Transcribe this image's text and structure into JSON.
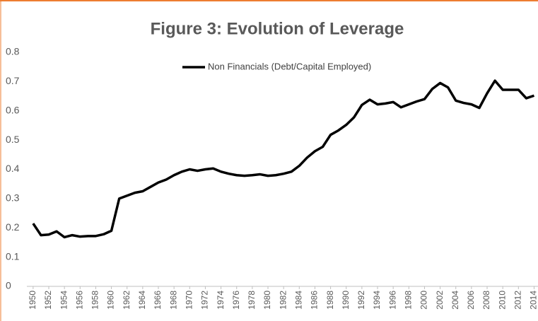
{
  "chart_data": {
    "type": "line",
    "title": "Figure 3: Evolution of Leverage",
    "x": [
      1950,
      1951,
      1952,
      1953,
      1954,
      1955,
      1956,
      1957,
      1958,
      1959,
      1960,
      1961,
      1962,
      1963,
      1964,
      1965,
      1966,
      1967,
      1968,
      1969,
      1970,
      1971,
      1972,
      1973,
      1974,
      1975,
      1976,
      1977,
      1978,
      1979,
      1980,
      1981,
      1982,
      1983,
      1984,
      1985,
      1986,
      1987,
      1988,
      1989,
      1990,
      1991,
      1992,
      1993,
      1994,
      1995,
      1996,
      1997,
      1998,
      1999,
      2000,
      2001,
      2002,
      2003,
      2004,
      2005,
      2006,
      2007,
      2008,
      2009,
      2010,
      2011,
      2012,
      2013,
      2014
    ],
    "series": [
      {
        "name": "Non Financials (Debt/Capital Employed)",
        "color": "#000000",
        "values": [
          0.215,
          0.175,
          0.177,
          0.188,
          0.168,
          0.175,
          0.17,
          0.172,
          0.172,
          0.178,
          0.19,
          0.3,
          0.31,
          0.32,
          0.325,
          0.34,
          0.355,
          0.365,
          0.38,
          0.392,
          0.4,
          0.395,
          0.4,
          0.403,
          0.392,
          0.385,
          0.38,
          0.378,
          0.38,
          0.383,
          0.378,
          0.38,
          0.385,
          0.392,
          0.412,
          0.44,
          0.462,
          0.477,
          0.518,
          0.533,
          0.552,
          0.578,
          0.62,
          0.638,
          0.622,
          0.625,
          0.63,
          0.612,
          0.622,
          0.632,
          0.64,
          0.675,
          0.695,
          0.68,
          0.635,
          0.627,
          0.622,
          0.61,
          0.66,
          0.703,
          0.672,
          0.672,
          0.672,
          0.643,
          0.652
        ]
      }
    ],
    "xlim": [
      1949.2,
      2014.5
    ],
    "xticks": [
      1950,
      1952,
      1954,
      1956,
      1958,
      1960,
      1962,
      1964,
      1966,
      1968,
      1970,
      1972,
      1974,
      1976,
      1978,
      1980,
      1982,
      1984,
      1986,
      1988,
      1990,
      1992,
      1994,
      1996,
      1998,
      2000,
      2002,
      2004,
      2006,
      2008,
      2010,
      2012,
      2014
    ],
    "ylim": [
      0,
      0.8
    ],
    "yticks": [
      0,
      0.1,
      0.2,
      0.3,
      0.4,
      0.5,
      0.6,
      0.7,
      0.8
    ],
    "legend": "top"
  }
}
